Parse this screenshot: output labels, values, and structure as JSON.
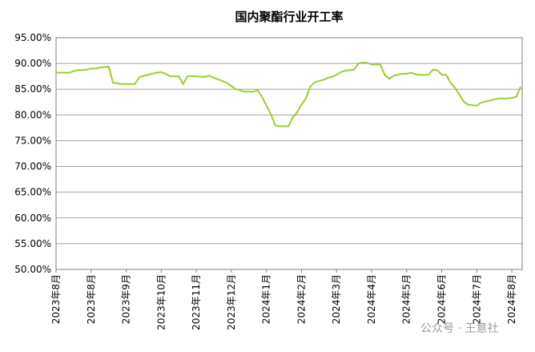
{
  "chart_data": {
    "type": "line",
    "title": "国内聚酯行业开工率",
    "watermark": "公众号 · 王意社",
    "categories": [
      "2023年8月",
      null,
      null,
      null,
      null,
      null,
      null,
      null,
      "2023年8月",
      null,
      null,
      null,
      null,
      null,
      null,
      null,
      "2023年9月",
      null,
      null,
      null,
      null,
      null,
      null,
      null,
      "2023年10月",
      null,
      null,
      null,
      null,
      null,
      null,
      null,
      "2023年11月",
      null,
      null,
      null,
      null,
      null,
      null,
      null,
      "2023年12月",
      null,
      null,
      null,
      null,
      null,
      null,
      null,
      "2024年1月",
      null,
      null,
      null,
      null,
      null,
      null,
      null,
      "2024年2月",
      null,
      null,
      null,
      null,
      null,
      null,
      null,
      "2024年3月",
      null,
      null,
      null,
      null,
      null,
      null,
      null,
      "2024年4月",
      null,
      null,
      null,
      null,
      null,
      null,
      null,
      "2024年5月",
      null,
      null,
      null,
      null,
      null,
      null,
      null,
      "2024年6月",
      null,
      null,
      null,
      null,
      null,
      null,
      null,
      "2024年7月",
      null,
      null,
      null,
      null,
      null,
      null,
      null,
      "2024年8月",
      null,
      null
    ],
    "series": [
      {
        "name": "国内聚酯行业开工率",
        "color": "#9acd32",
        "values": [
          88.2,
          88.2,
          88.2,
          88.2,
          88.5,
          88.7,
          88.7,
          88.8,
          89.0,
          89.0,
          89.2,
          89.3,
          89.4,
          86.3,
          86.1,
          86.0,
          86.0,
          86.0,
          86.0,
          87.3,
          87.6,
          87.8,
          88.0,
          88.2,
          88.3,
          88.0,
          87.5,
          87.5,
          87.5,
          86.0,
          87.5,
          87.5,
          87.5,
          87.4,
          87.4,
          87.6,
          87.2,
          86.9,
          86.6,
          86.2,
          85.6,
          85.0,
          84.8,
          84.5,
          84.5,
          84.5,
          84.8,
          83.5,
          81.8,
          80.2,
          78.0,
          77.8,
          77.8,
          77.8,
          79.5,
          80.5,
          82.0,
          83.2,
          85.5,
          86.3,
          86.6,
          86.8,
          87.2,
          87.4,
          87.8,
          88.3,
          88.6,
          88.7,
          88.8,
          90.0,
          90.2,
          90.1,
          89.8,
          89.8,
          89.8,
          87.8,
          87.0,
          87.6,
          87.8,
          88.0,
          88.0,
          88.2,
          87.9,
          87.8,
          87.8,
          87.8,
          88.8,
          88.7,
          87.8,
          87.8,
          86.3,
          85.3,
          84.0,
          82.6,
          82.0,
          81.9,
          81.8,
          82.4,
          82.6,
          82.8,
          83.0,
          83.2,
          83.2,
          83.2,
          83.3,
          83.5,
          85.5
        ]
      }
    ],
    "ylim": [
      50,
      95
    ],
    "yticks": [
      {
        "value": 50,
        "label": "50.00%"
      },
      {
        "value": 55,
        "label": "55.00%"
      },
      {
        "value": 60,
        "label": "60.00%"
      },
      {
        "value": 65,
        "label": "65.00%"
      },
      {
        "value": 70,
        "label": "70.00%"
      },
      {
        "value": 75,
        "label": "75.00%"
      },
      {
        "value": 80,
        "label": "80.00%"
      },
      {
        "value": 85,
        "label": "85.00%"
      },
      {
        "value": 90,
        "label": "90.00%"
      },
      {
        "value": 95,
        "label": "95.00%"
      }
    ],
    "grid": true
  }
}
